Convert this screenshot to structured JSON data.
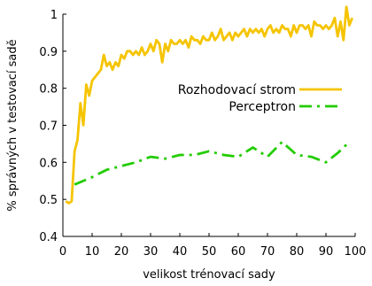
{
  "chart_data": {
    "type": "line",
    "xlabel": "velikost trénovací sady",
    "ylabel": "% správných v testovací sadě",
    "xlim": [
      0,
      100
    ],
    "ylim": [
      0.4,
      1.0
    ],
    "x_ticks": [
      "0",
      "10",
      "20",
      "30",
      "40",
      "50",
      "60",
      "70",
      "80",
      "90",
      "100"
    ],
    "y_ticks": [
      "0.4",
      "0.5",
      "0.6",
      "0.7",
      "0.8",
      "0.9",
      "1"
    ],
    "legend_position": "right",
    "grid": false,
    "series": [
      {
        "name": "Rozhodovací strom",
        "color": "#f5c400",
        "style": "solid",
        "x": [
          1,
          2,
          3,
          4,
          5,
          6,
          7,
          8,
          9,
          10,
          11,
          12,
          13,
          14,
          15,
          16,
          17,
          18,
          19,
          20,
          21,
          22,
          23,
          24,
          25,
          26,
          27,
          28,
          29,
          30,
          31,
          32,
          33,
          34,
          35,
          36,
          37,
          38,
          39,
          40,
          41,
          42,
          43,
          44,
          45,
          46,
          47,
          48,
          49,
          50,
          51,
          52,
          53,
          54,
          55,
          56,
          57,
          58,
          59,
          60,
          61,
          62,
          63,
          64,
          65,
          66,
          67,
          68,
          69,
          70,
          71,
          72,
          73,
          74,
          75,
          76,
          77,
          78,
          79,
          80,
          81,
          82,
          83,
          84,
          85,
          86,
          87,
          88,
          89,
          90,
          91,
          92,
          93,
          94,
          95,
          96,
          97,
          98,
          99
        ],
        "y": [
          0.495,
          0.49,
          0.495,
          0.63,
          0.66,
          0.76,
          0.7,
          0.81,
          0.78,
          0.82,
          0.83,
          0.84,
          0.85,
          0.89,
          0.86,
          0.87,
          0.85,
          0.87,
          0.86,
          0.89,
          0.88,
          0.9,
          0.9,
          0.89,
          0.9,
          0.89,
          0.91,
          0.89,
          0.9,
          0.92,
          0.9,
          0.93,
          0.92,
          0.87,
          0.92,
          0.9,
          0.93,
          0.92,
          0.92,
          0.93,
          0.92,
          0.93,
          0.91,
          0.94,
          0.93,
          0.93,
          0.92,
          0.94,
          0.93,
          0.93,
          0.95,
          0.93,
          0.94,
          0.96,
          0.93,
          0.94,
          0.95,
          0.93,
          0.95,
          0.94,
          0.95,
          0.96,
          0.94,
          0.96,
          0.95,
          0.96,
          0.95,
          0.96,
          0.94,
          0.96,
          0.97,
          0.95,
          0.96,
          0.95,
          0.97,
          0.96,
          0.96,
          0.94,
          0.97,
          0.95,
          0.97,
          0.97,
          0.96,
          0.97,
          0.94,
          0.98,
          0.97,
          0.97,
          0.96,
          0.97,
          0.96,
          0.97,
          0.99,
          0.94,
          0.98,
          0.93,
          1.02,
          0.97,
          0.99
        ]
      },
      {
        "name": "Perceptron",
        "color": "#22cc00",
        "style": "dashdot",
        "x": [
          4,
          10,
          15,
          20,
          25,
          30,
          35,
          40,
          45,
          50,
          55,
          60,
          65,
          70,
          75,
          80,
          85,
          90,
          94,
          98
        ],
        "y": [
          0.54,
          0.56,
          0.58,
          0.59,
          0.6,
          0.615,
          0.61,
          0.62,
          0.62,
          0.63,
          0.62,
          0.615,
          0.64,
          0.615,
          0.655,
          0.62,
          0.615,
          0.6,
          0.625,
          0.655
        ]
      }
    ]
  }
}
